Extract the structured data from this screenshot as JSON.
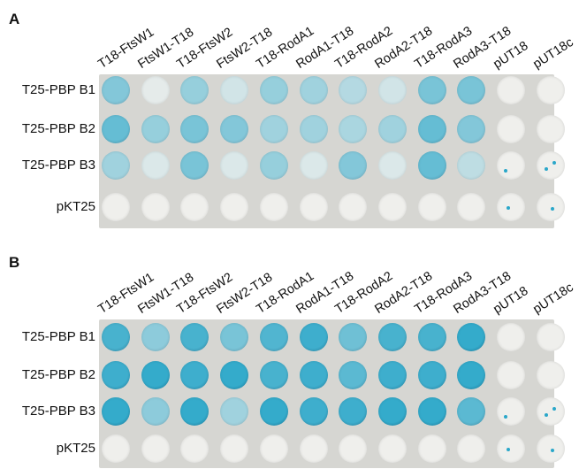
{
  "columns": [
    "T18-FtsW1",
    "FtsW1-T18",
    "T18-FtsW2",
    "FtsW2-T18",
    "T18-RodA1",
    "RodA1-T18",
    "T18-RodA2",
    "RodA2-T18",
    "T18-RodA3",
    "RodA3-T18",
    "pUT18",
    "pUT18c"
  ],
  "rows": [
    "T25-PBP B1",
    "T25-PBP B2",
    "T25-PBP B3",
    "pKT25"
  ],
  "colors": {
    "plate": "#d6d6d2",
    "white_colony": "#efefec",
    "blue_colony": "#2aa7c9"
  },
  "panels": [
    {
      "letter": "A",
      "intensity": [
        [
          0.55,
          0.05,
          0.45,
          0.15,
          0.45,
          0.4,
          0.3,
          0.15,
          0.6,
          0.6,
          0.0,
          0.0
        ],
        [
          0.7,
          0.45,
          0.6,
          0.55,
          0.4,
          0.4,
          0.35,
          0.4,
          0.7,
          0.55,
          0.0,
          0.0
        ],
        [
          0.4,
          0.1,
          0.6,
          0.1,
          0.45,
          0.1,
          0.55,
          0.1,
          0.7,
          0.25,
          0.0,
          0.0
        ],
        [
          0,
          0,
          0,
          0,
          0,
          0,
          0,
          0,
          0,
          0,
          0,
          0
        ]
      ]
    },
    {
      "letter": "B",
      "intensity": [
        [
          0.85,
          0.5,
          0.85,
          0.6,
          0.8,
          0.9,
          0.65,
          0.85,
          0.85,
          0.95,
          0.0,
          0.0
        ],
        [
          0.9,
          0.95,
          0.9,
          0.95,
          0.85,
          0.9,
          0.75,
          0.9,
          0.9,
          0.95,
          0.0,
          0.0
        ],
        [
          0.95,
          0.5,
          0.95,
          0.4,
          0.95,
          0.9,
          0.9,
          0.95,
          0.95,
          0.75,
          0.0,
          0.0
        ],
        [
          0,
          0,
          0,
          0,
          0,
          0,
          0,
          0,
          0,
          0,
          0,
          0
        ]
      ]
    }
  ]
}
